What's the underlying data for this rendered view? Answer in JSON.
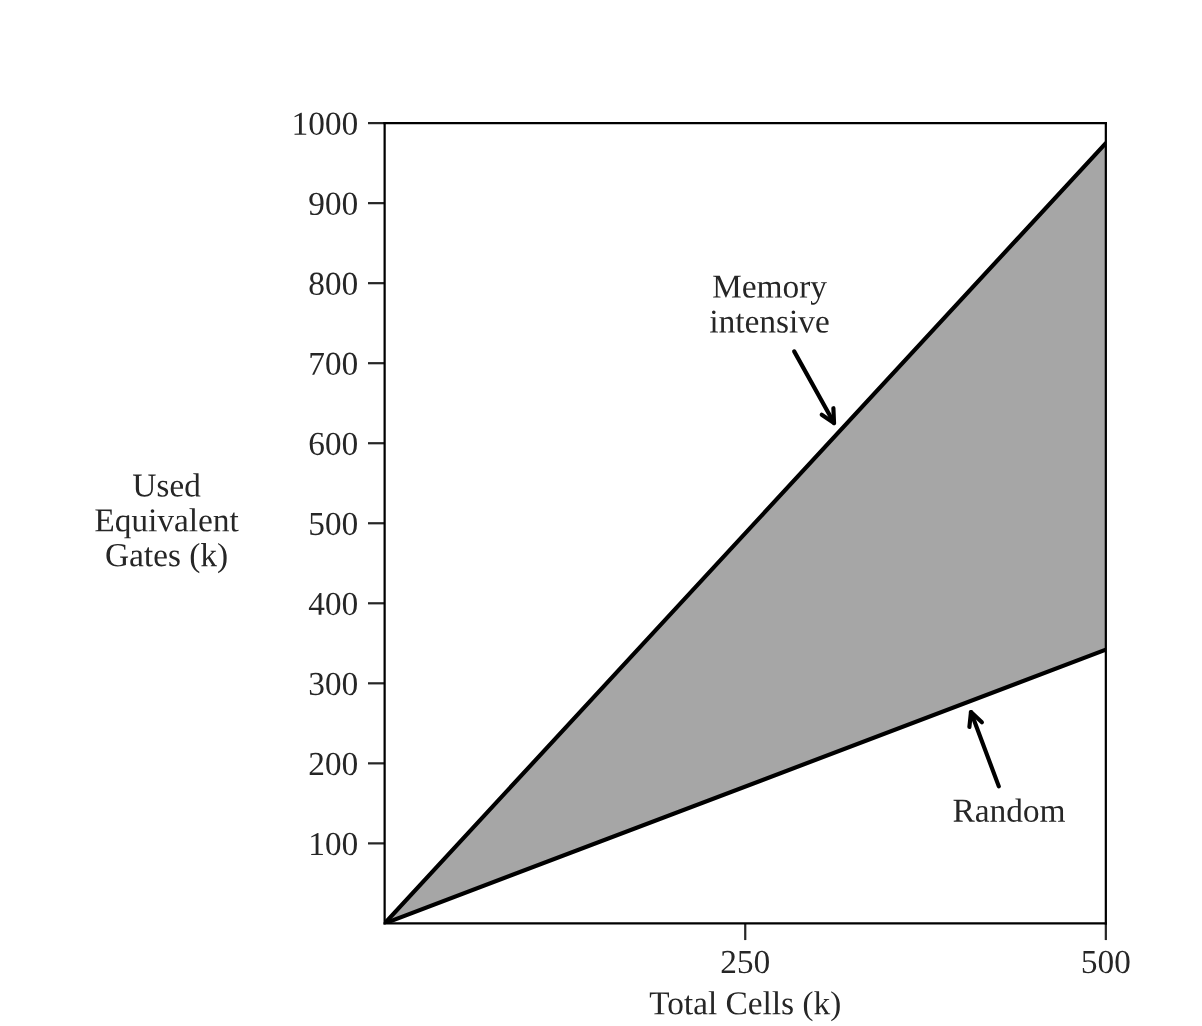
{
  "chart_data": {
    "type": "line",
    "xlabel": "Total Cells (k)",
    "ylabel": "Used\nEquivalent\nGates (k)",
    "xlim": [
      0,
      500
    ],
    "xticks": [
      250,
      500
    ],
    "ylim": [
      0,
      1000
    ],
    "yticks": [
      100,
      200,
      300,
      400,
      500,
      600,
      700,
      800,
      900,
      1000
    ],
    "grid": false,
    "x": [
      0,
      500
    ],
    "annotations": [
      {
        "text": "Memory\nintensive",
        "x": 315,
        "y": 614
      },
      {
        "text": "Random",
        "x": 404,
        "y": 276
      }
    ],
    "series": [
      {
        "color": "#000000",
        "values": [
          0,
          975
        ],
        "lower": [
          0,
          342
        ],
        "upper": [
          0,
          975
        ]
      },
      {
        "color": "#000000",
        "values": [
          0,
          342
        ]
      }
    ]
  }
}
